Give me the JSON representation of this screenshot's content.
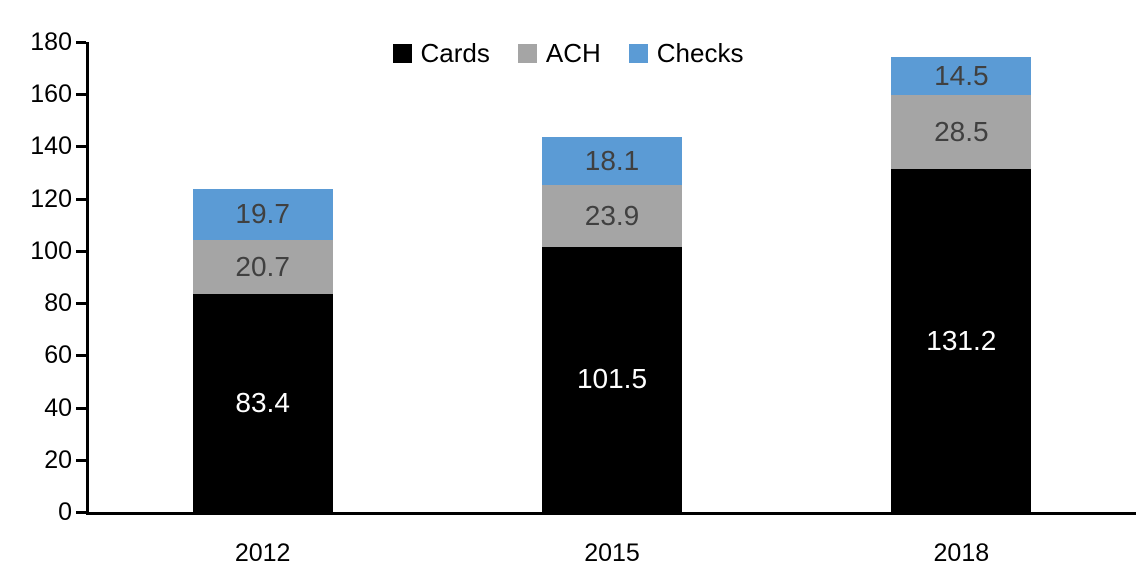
{
  "chart_data": {
    "type": "bar",
    "stacked": true,
    "title": "",
    "categories": [
      "2012",
      "2015",
      "2018"
    ],
    "series": [
      {
        "name": "Cards",
        "color": "#000000",
        "label_color": "#ffffff",
        "values": [
          83.4,
          101.5,
          131.2
        ]
      },
      {
        "name": "ACH",
        "color": "#a5a5a5",
        "label_color": "#404040",
        "values": [
          20.7,
          23.9,
          28.5
        ]
      },
      {
        "name": "Checks",
        "color": "#5b9bd5",
        "label_color": "#404040",
        "values": [
          19.7,
          18.1,
          14.5
        ]
      }
    ],
    "ylim": [
      0,
      180
    ],
    "ytick_step": 20,
    "ytick_labels": [
      "0",
      "20",
      "40",
      "60",
      "80",
      "100",
      "120",
      "140",
      "160",
      "180"
    ],
    "legend_position": "top-center",
    "legend_entries": [
      "Cards",
      "ACH",
      "Checks"
    ],
    "grid": false,
    "data_labels": true,
    "axis_color": "#000000",
    "background_color": "#ffffff"
  }
}
